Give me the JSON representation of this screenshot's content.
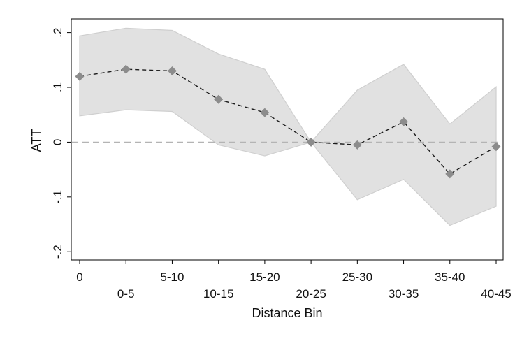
{
  "chart_data": {
    "type": "line",
    "xlabel": "Distance Bin",
    "ylabel": "ATT",
    "categories": [
      "0",
      "0-5",
      "5-10",
      "10-15",
      "15-20",
      "20-25",
      "25-30",
      "30-35",
      "35-40",
      "40-45"
    ],
    "series": [
      {
        "values": [
          0.12,
          0.133,
          0.13,
          0.078,
          0.054,
          0.0,
          -0.005,
          0.037,
          -0.058,
          -0.008
        ]
      }
    ],
    "ci_upper": [
      0.194,
      0.208,
      0.204,
      0.161,
      0.133,
      0.0,
      0.095,
      0.142,
      0.033,
      0.101
    ],
    "ci_lower": [
      0.048,
      0.059,
      0.056,
      -0.005,
      -0.025,
      0.0,
      -0.105,
      -0.068,
      -0.152,
      -0.117
    ],
    "yticks": [
      0.2,
      0.1,
      0,
      -0.1,
      -0.2
    ],
    "ytick_labels": [
      ".2",
      ".1",
      "0",
      "-.1",
      "-.2"
    ],
    "ylim": [
      -0.215,
      0.225
    ],
    "reference_line": 0,
    "grid": false,
    "colors": {
      "ci_band": "#e1e1e1",
      "ci_edge": "#cfcfcf",
      "marker": "#8c8c8c",
      "line": "#1a1a1a",
      "reference": "#b4b4b4"
    }
  }
}
